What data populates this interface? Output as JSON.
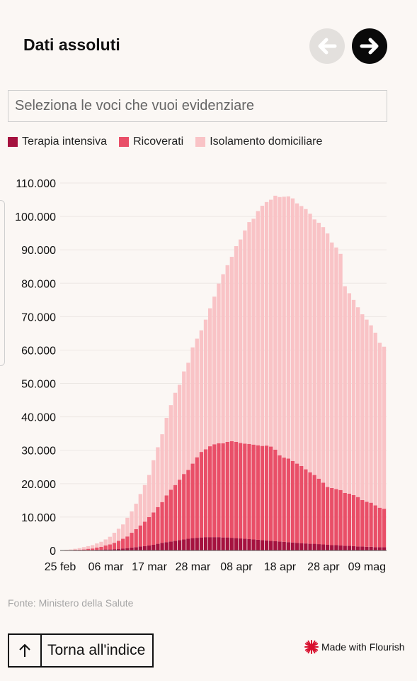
{
  "header": {
    "title": "Dati assoluti"
  },
  "search": {
    "placeholder": "Seleziona le voci che vuoi evidenziare"
  },
  "legend": [
    {
      "label": "Terapia intensiva",
      "color": "#a5123f"
    },
    {
      "label": "Ricoverati",
      "color": "#e94f68"
    },
    {
      "label": "Isolamento domiciliare",
      "color": "#f9c3c6"
    }
  ],
  "source": "Fonte: Ministero della Salute",
  "footer": {
    "back_label": "Torna all'indice",
    "flourish_label": "Made with Flourish"
  },
  "chart_data": {
    "type": "bar",
    "stacked": true,
    "yticks": [
      "0",
      "10.000",
      "20.000",
      "30.000",
      "40.000",
      "50.000",
      "60.000",
      "70.000",
      "80.000",
      "90.000",
      "100.000",
      "110.000"
    ],
    "ylim": [
      0,
      110000
    ],
    "xticks": [
      "25 feb",
      "06 mar",
      "17 mar",
      "28 mar",
      "08 apr",
      "18 apr",
      "28 apr",
      "09 mag"
    ],
    "grid": true,
    "legend_position": "top",
    "series": [
      {
        "name": "Terapia intensiva",
        "color": "#a5123f",
        "values": [
          0,
          0,
          0,
          0,
          0,
          0,
          100,
          100,
          200,
          200,
          300,
          300,
          400,
          500,
          600,
          700,
          900,
          1000,
          1200,
          1300,
          1500,
          1700,
          2000,
          2300,
          2500,
          2700,
          2900,
          3100,
          3300,
          3500,
          3700,
          3800,
          3900,
          4000,
          4000,
          4000,
          4000,
          3900,
          3900,
          3800,
          3700,
          3600,
          3500,
          3400,
          3300,
          3200,
          3100,
          3000,
          2900,
          2800,
          2700,
          2600,
          2500,
          2400,
          2300,
          2200,
          2100,
          2000,
          2000,
          1900,
          1800,
          1700,
          1600,
          1600,
          1500,
          1400,
          1400,
          1300,
          1200,
          1200,
          1100,
          1100,
          1000,
          1000,
          1000
        ]
      },
      {
        "name": "Ricoverati",
        "color": "#e94f68",
        "values": [
          100,
          100,
          100,
          200,
          200,
          300,
          400,
          500,
          700,
          900,
          1200,
          1500,
          1900,
          2400,
          2900,
          3500,
          4400,
          5400,
          6300,
          7300,
          8500,
          9700,
          11000,
          12200,
          14000,
          15500,
          16700,
          18100,
          19600,
          20600,
          22300,
          24100,
          25600,
          26300,
          27200,
          27800,
          28100,
          28200,
          28600,
          28900,
          28800,
          28600,
          28500,
          28500,
          28400,
          28300,
          28200,
          28400,
          28200,
          27400,
          25800,
          25200,
          25000,
          24400,
          23700,
          23100,
          22200,
          21400,
          20600,
          19600,
          18500,
          17300,
          17100,
          16800,
          16600,
          15800,
          15600,
          15300,
          14800,
          13900,
          13500,
          13200,
          12500,
          11800,
          11500
        ]
      },
      {
        "name": "Isolamento domiciliare",
        "color": "#f9c3c6",
        "values": [
          0,
          100,
          200,
          300,
          500,
          700,
          800,
          1000,
          1200,
          1500,
          1800,
          2300,
          3000,
          3600,
          4300,
          5600,
          6400,
          7600,
          9400,
          11000,
          12600,
          15600,
          17900,
          20300,
          23200,
          25300,
          27600,
          28400,
          30700,
          32100,
          34800,
          35500,
          36400,
          38800,
          41300,
          44200,
          47800,
          50600,
          52900,
          55200,
          58600,
          60900,
          63800,
          66400,
          67600,
          70100,
          71900,
          72900,
          73900,
          76000,
          77300,
          78100,
          78500,
          78600,
          77900,
          77800,
          77900,
          77400,
          76500,
          76600,
          76500,
          75900,
          73500,
          72300,
          70700,
          61900,
          60000,
          58400,
          56800,
          55600,
          54500,
          53100,
          51700,
          49400,
          48500
        ]
      }
    ]
  }
}
